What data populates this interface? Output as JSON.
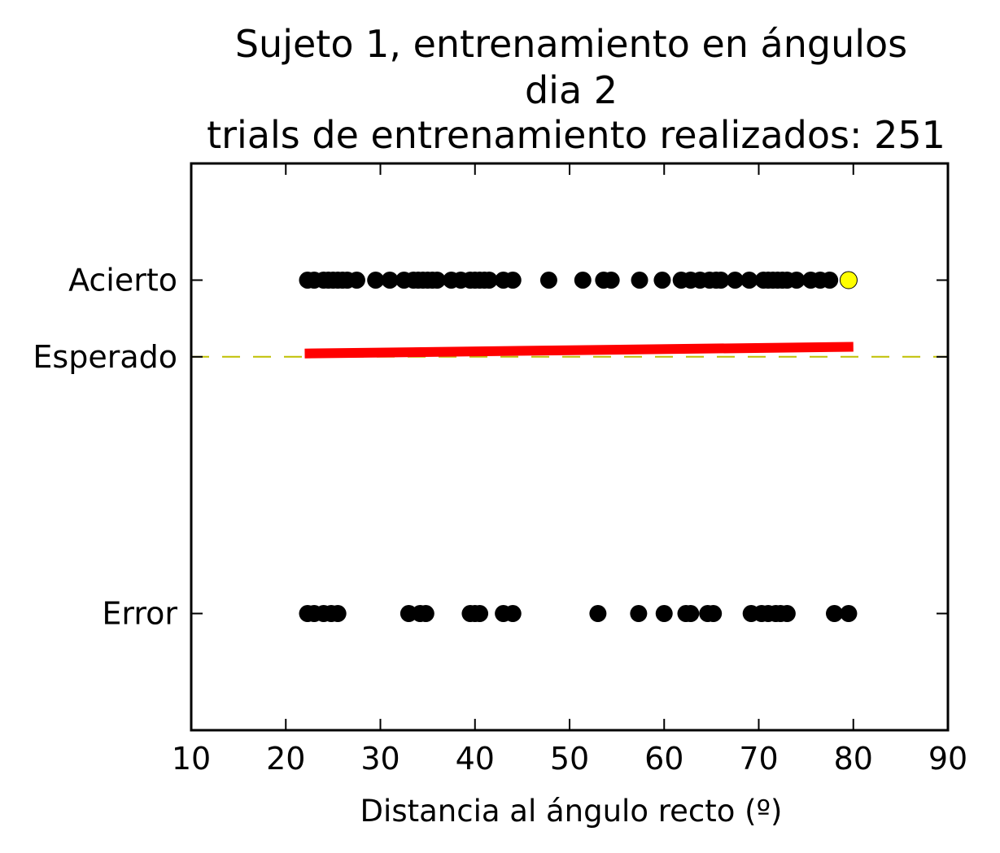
{
  "chart_data": {
    "type": "scatter",
    "title": [
      "Sujeto 1, entrenamiento en ángulos",
      "dia 2",
      "trials de entrenamiento realizados: 251"
    ],
    "xlabel": "Distancia al ángulo recto (º)",
    "ylabel": "",
    "xlim": [
      10,
      90
    ],
    "ylim": [
      -0.35,
      1.35
    ],
    "xticks": [
      10,
      20,
      30,
      40,
      50,
      60,
      70,
      80,
      90
    ],
    "yticks": [
      {
        "value": 0,
        "label": "Error"
      },
      {
        "value": 0.77,
        "label": "Esperado"
      },
      {
        "value": 1,
        "label": "Acierto"
      }
    ],
    "grid": false,
    "series": [
      {
        "kind": "points",
        "color": "#000000",
        "y": 1,
        "x": [
          22.3,
          23.0,
          24.0,
          24.5,
          25.0,
          25.5,
          26.0,
          26.5,
          27.5,
          29.5,
          31.0,
          32.5,
          33.5,
          34.0,
          34.5,
          35.0,
          35.5,
          36.0,
          37.5,
          38.5,
          39.5,
          40.0,
          40.5,
          41.0,
          41.5,
          43.0,
          44.0,
          47.8,
          51.4,
          53.6,
          54.4,
          57.4,
          59.8,
          61.8,
          62.8,
          63.8,
          64.8,
          65.5,
          66.0,
          67.5,
          69.0,
          70.5,
          71.0,
          71.5,
          72.0,
          72.5,
          73.0,
          74.0,
          75.5,
          76.5,
          77.5,
          79.5
        ]
      },
      {
        "kind": "points",
        "color": "#ffff00",
        "y": 1,
        "x": [
          79.5
        ]
      },
      {
        "kind": "points",
        "color": "#000000",
        "y": 0,
        "x": [
          22.3,
          23.0,
          24.0,
          24.8,
          25.5,
          33.0,
          34.2,
          34.8,
          39.5,
          40.0,
          40.5,
          43.0,
          44.0,
          53.0,
          57.3,
          60.0,
          62.3,
          62.8,
          64.6,
          65.2,
          69.2,
          70.3,
          71.0,
          71.8,
          72.3,
          73.0,
          78.0,
          79.5
        ]
      },
      {
        "kind": "line",
        "color": "#ff0000",
        "x": [
          22,
          80
        ],
        "y": [
          0.78,
          0.8
        ]
      },
      {
        "kind": "dashed-line",
        "color": "#bfbf00",
        "x": [
          10,
          90
        ],
        "y": [
          0.77,
          0.77
        ]
      }
    ]
  }
}
